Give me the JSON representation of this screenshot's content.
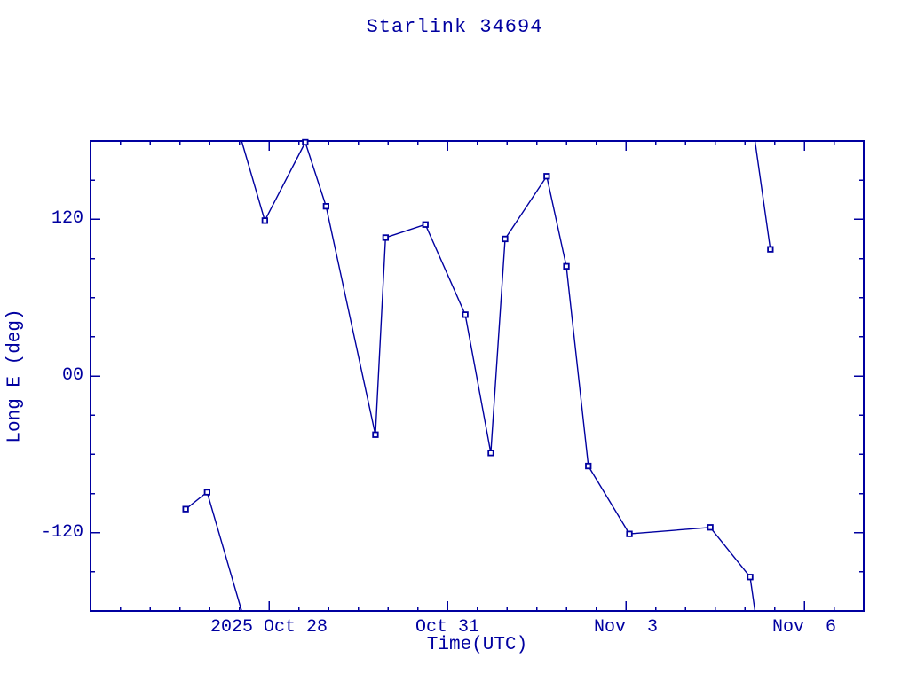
{
  "page": {
    "background": "#FFFFFF"
  },
  "colors": {
    "accent": "#0000A0",
    "marker_fill": "#FFFFFF"
  },
  "chart_data": {
    "type": "line",
    "title": "Starlink 34694",
    "xlabel": "Time(UTC)",
    "ylabel": "Long E (deg)",
    "grid": false,
    "legend": false,
    "x_axis": {
      "unit": "days since 2025 Oct 25 00:00 UTC",
      "min": 0,
      "max": 13,
      "minor_tick_interval": 0.5,
      "major_ticks": [
        {
          "t": 3,
          "label": "2025 Oct 28"
        },
        {
          "t": 6,
          "label": "Oct 31"
        },
        {
          "t": 9,
          "label": "Nov  3"
        },
        {
          "t": 12,
          "label": "Nov  6"
        }
      ]
    },
    "y_axis": {
      "min": -180,
      "max": 180,
      "minor_tick_interval": 30,
      "major_ticks": [
        {
          "v": 120,
          "label": "120"
        },
        {
          "v": 0,
          "label": "00"
        },
        {
          "v": -120,
          "label": "-120"
        }
      ]
    },
    "series": [
      {
        "name": "longitude-east-deg",
        "marker": "square",
        "wrap_at_deg": 180,
        "points": [
          {
            "t": 1.6,
            "lon": -102
          },
          {
            "t": 1.96,
            "lon": -89
          },
          {
            "t": 2.93,
            "lon": 119
          },
          {
            "t": 3.61,
            "lon": 179
          },
          {
            "t": 3.96,
            "lon": 130
          },
          {
            "t": 4.79,
            "lon": -45
          },
          {
            "t": 4.96,
            "lon": 106
          },
          {
            "t": 5.63,
            "lon": 116
          },
          {
            "t": 6.3,
            "lon": 47
          },
          {
            "t": 6.73,
            "lon": -59
          },
          {
            "t": 6.97,
            "lon": 105
          },
          {
            "t": 7.67,
            "lon": 153
          },
          {
            "t": 8.0,
            "lon": 84
          },
          {
            "t": 8.37,
            "lon": -69
          },
          {
            "t": 9.06,
            "lon": -121
          },
          {
            "t": 10.42,
            "lon": -116
          },
          {
            "t": 11.09,
            "lon": -154
          },
          {
            "t": 11.43,
            "lon": 97
          }
        ]
      }
    ]
  }
}
